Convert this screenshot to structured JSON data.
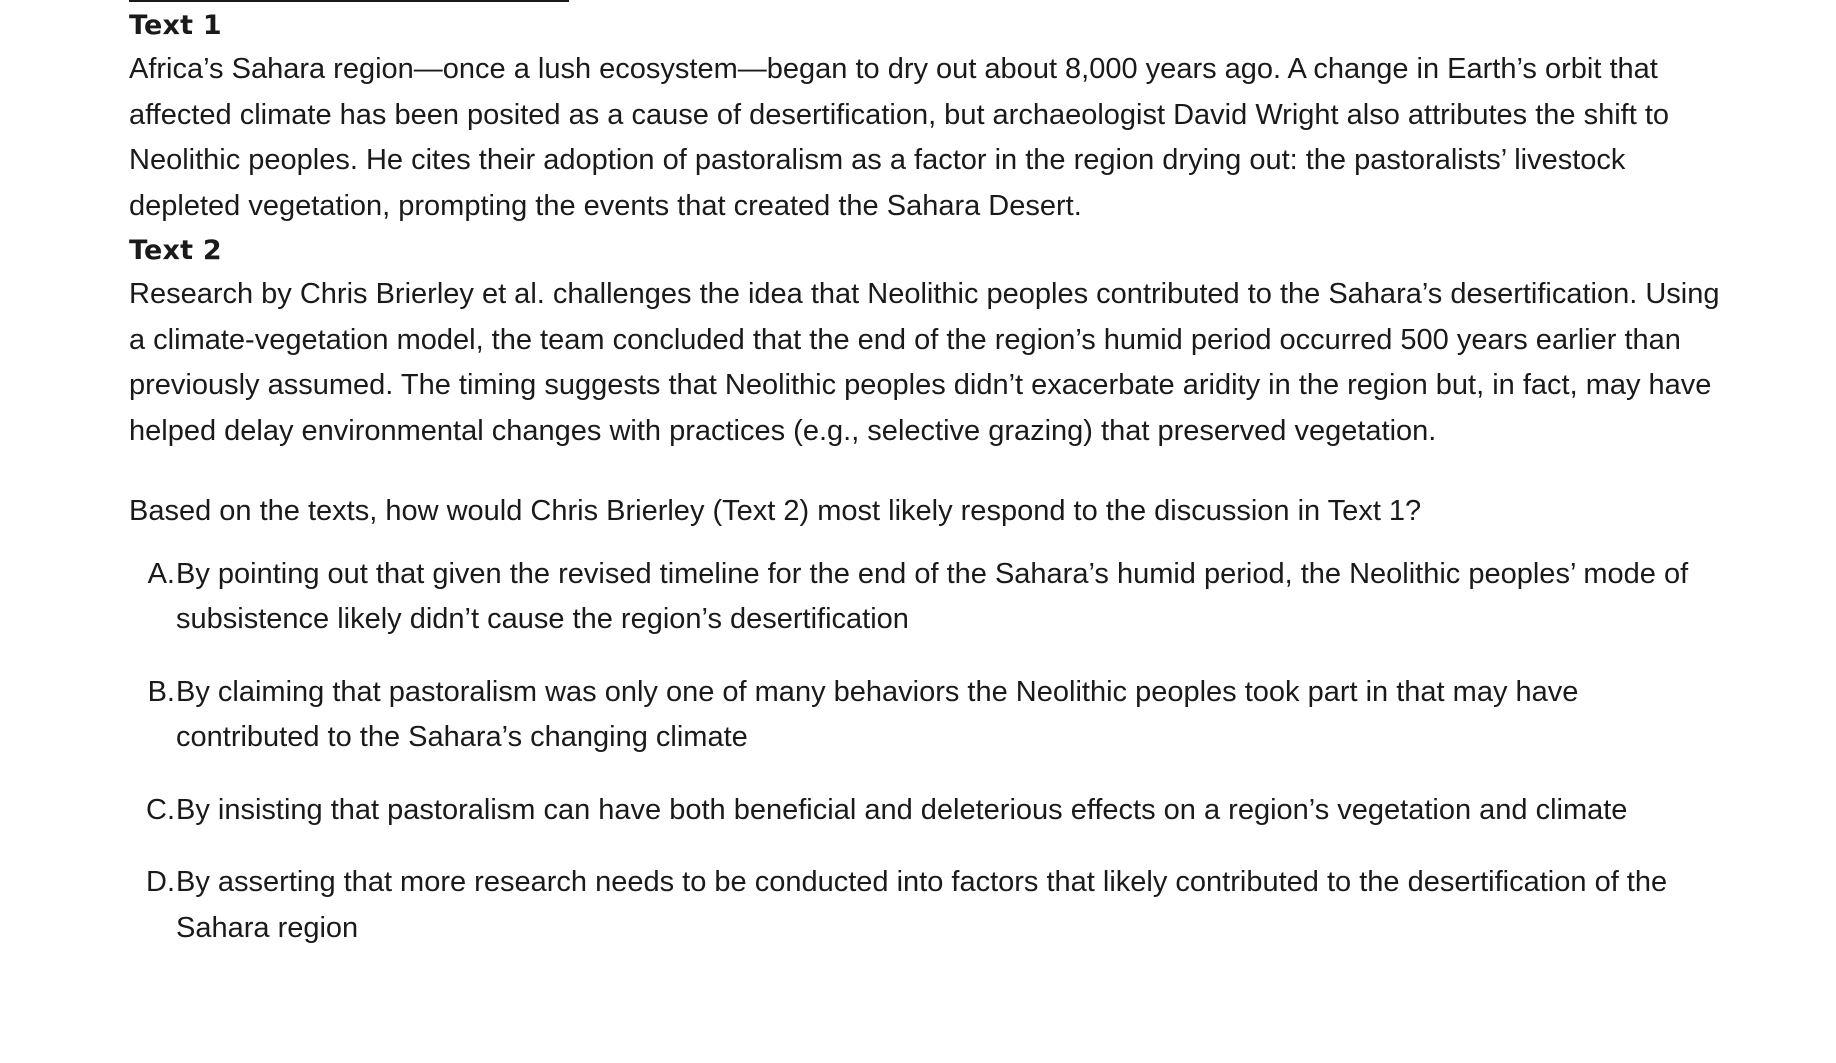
{
  "text1": {
    "heading": "Text 1",
    "body": "Africa’s Sahara region—once a lush ecosystem—began to dry out about 8,000 years ago. A change in Earth’s orbit that affected climate has been posited as a cause of desertification, but archaeologist David Wright also attributes the shift to Neolithic peoples. He cites their adoption of pastoralism as a factor in the region drying out: the pastoralists’ livestock depleted vegetation, prompting the events that created the Sahara Desert."
  },
  "text2": {
    "heading": "Text 2",
    "body": "Research by Chris Brierley et al. challenges the idea that Neolithic peoples contributed to the Sahara’s desertification. Using a climate-vegetation model, the team concluded that the end of the region’s humid period occurred 500 years earlier than previously assumed. The timing suggests that Neolithic peoples didn’t exacerbate aridity in the region but, in fact, may have helped delay environmental changes with practices (e.g., selective grazing) that preserved vegetation."
  },
  "question": "Based on the texts, how would Chris Brierley (Text 2) most likely respond to the discussion in Text 1?",
  "choices": [
    {
      "letter": "A.",
      "text": "By pointing out that given the revised timeline for the end of the Sahara’s humid period, the Neolithic peoples’ mode of subsistence likely didn’t cause the region’s desertification"
    },
    {
      "letter": "B.",
      "text": "By claiming that pastoralism was only one of many behaviors the Neolithic peoples took part in that may have contributed to the Sahara’s changing climate"
    },
    {
      "letter": "C.",
      "text": "By insisting that pastoralism can have both beneficial and deleterious effects on a region’s vegetation and climate"
    },
    {
      "letter": "D.",
      "text": "By asserting that more research needs to be conducted into factors that likely contributed to the desertification of the Sahara region"
    }
  ]
}
